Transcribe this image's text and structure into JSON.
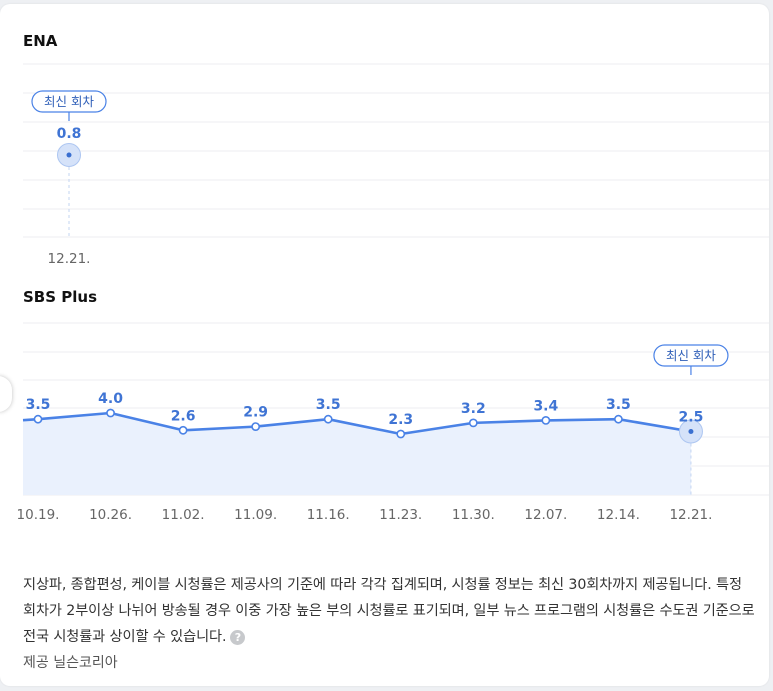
{
  "charts": {
    "ena": {
      "title": "ENA",
      "chart_data": {
        "type": "line",
        "title": "ENA",
        "categories": [
          "12.21."
        ],
        "values": [
          0.8
        ],
        "value_labels": [
          "0.8"
        ],
        "latest_index": 0,
        "latest_label": "최신 회차"
      }
    },
    "sbs": {
      "title": "SBS Plus",
      "chart_data": {
        "type": "area",
        "title": "SBS Plus",
        "categories": [
          "10.19.",
          "10.26.",
          "11.02.",
          "11.09.",
          "11.16.",
          "11.23.",
          "11.30.",
          "12.07.",
          "12.14.",
          "12.21."
        ],
        "values": [
          3.5,
          4.0,
          2.6,
          2.9,
          3.5,
          2.3,
          3.2,
          3.4,
          3.5,
          2.5
        ],
        "value_labels": [
          "3.5",
          "4.0",
          "2.6",
          "2.9",
          "3.5",
          "2.3",
          "3.2",
          "3.4",
          "3.5",
          "2.5"
        ],
        "latest_index": 9,
        "latest_label": "최신 회차"
      }
    }
  },
  "colors": {
    "line": "#4a82e6",
    "label": "#3f74d4",
    "area": "#eaf1fd",
    "grid": "#eceef1",
    "axis_text": "#666666"
  },
  "footnote": {
    "text": "지상파, 종합편성, 케이블 시청률은 제공사의 기준에 따라 각각 집계되며, 시청률 정보는 최신 30회차까지 제공됩니다. 특정 회차가 2부이상 나뉘어 방송될 경우 이중 가장 높은 부의 시청률로 표기되며, 일부 뉴스 프로그램의 시청률은 수도권 기준으로 전국 시청률과 상이할 수 있습니다.",
    "help_icon": "question-icon",
    "help_glyph": "?",
    "provider": "제공 닐슨코리아"
  }
}
